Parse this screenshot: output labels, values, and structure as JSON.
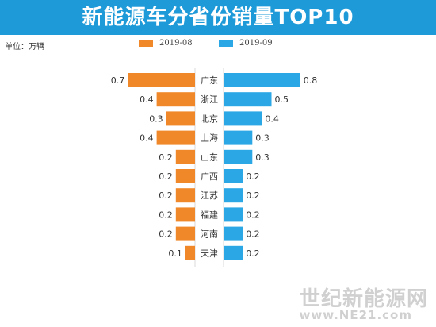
{
  "title": "新能源车分省份销量TOP10",
  "unit_label": "单位：万辆",
  "watermark": {
    "name": "世纪新能源网",
    "url": "www.NE21.com"
  },
  "chart_data": {
    "type": "bar",
    "orientation": "diverging-horizontal",
    "title": "新能源车分省份销量TOP10",
    "unit": "万辆",
    "legend_position": "top-center",
    "categories": [
      "广东",
      "浙江",
      "北京",
      "上海",
      "山东",
      "广西",
      "江苏",
      "福建",
      "河南",
      "天津"
    ],
    "series": [
      {
        "name": "2019-08",
        "side": "left",
        "color": "#f0882a",
        "values": [
          0.7,
          0.4,
          0.3,
          0.4,
          0.2,
          0.2,
          0.2,
          0.2,
          0.2,
          0.1
        ]
      },
      {
        "name": "2019-09",
        "side": "right",
        "color": "#2ba7e5",
        "values": [
          0.8,
          0.5,
          0.4,
          0.3,
          0.3,
          0.2,
          0.2,
          0.2,
          0.2,
          0.2
        ]
      }
    ]
  }
}
